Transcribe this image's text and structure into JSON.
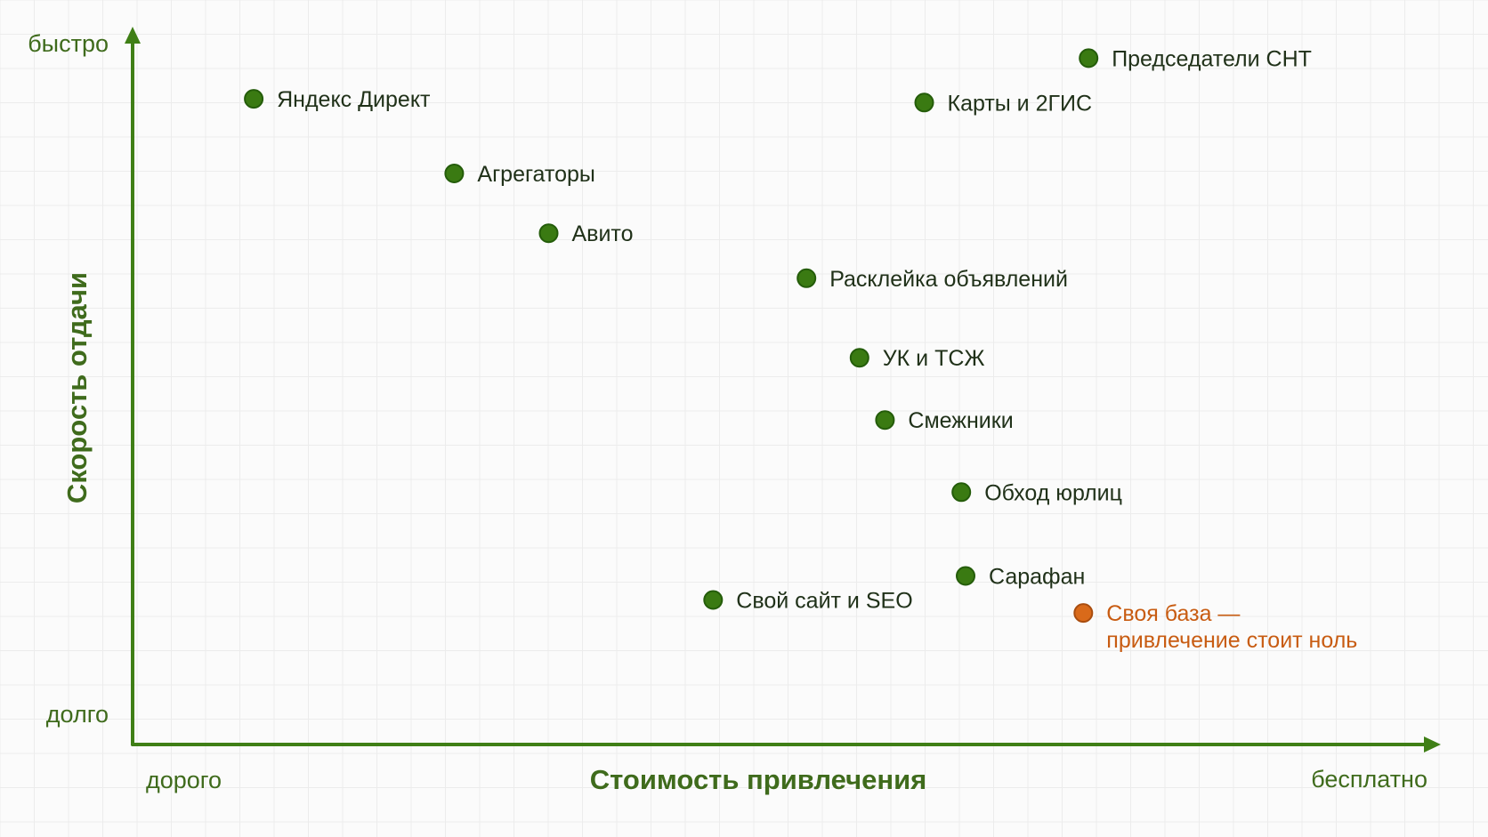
{
  "colors": {
    "background": "#fbfbfb",
    "grid": "#ececec",
    "axis": "#3f7f16",
    "point": "#3a7a12",
    "point_stroke": "#245c0a",
    "highlight": "#d96a1a",
    "highlight_stroke": "#a94d0f",
    "text": "#203119",
    "highlight_text": "#c85c12"
  },
  "chart_data": {
    "type": "scatter",
    "xlabel": "Стоимость привлечения",
    "ylabel": "Скорость отдачи",
    "x_low_label": "дорого",
    "x_high_label": "бесплатно",
    "y_low_label": "долго",
    "y_high_label": "быстро",
    "xlim": [
      0,
      100
    ],
    "ylim": [
      0,
      100
    ],
    "grid": true,
    "points": [
      {
        "label": [
          "Яндекс Директ"
        ],
        "x": 5.8,
        "y": 93.2,
        "highlight": false
      },
      {
        "label": [
          "Агрегаторы"
        ],
        "x": 24.7,
        "y": 81.1,
        "highlight": false
      },
      {
        "label": [
          "Авито"
        ],
        "x": 33.6,
        "y": 71.4,
        "highlight": false
      },
      {
        "label": [
          "Расклейка объявлений"
        ],
        "x": 57.9,
        "y": 64.1,
        "highlight": false
      },
      {
        "label": [
          "УК и ТСЖ"
        ],
        "x": 62.9,
        "y": 51.2,
        "highlight": false
      },
      {
        "label": [
          "Смежники"
        ],
        "x": 65.3,
        "y": 41.1,
        "highlight": false
      },
      {
        "label": [
          "Обход юрлиц"
        ],
        "x": 72.5,
        "y": 29.4,
        "highlight": false
      },
      {
        "label": [
          "Сарафан"
        ],
        "x": 72.9,
        "y": 15.8,
        "highlight": false
      },
      {
        "label": [
          "Свой сайт и SEO"
        ],
        "x": 49.1,
        "y": 11.9,
        "highlight": false
      },
      {
        "label": [
          "Карты и 2ГИС"
        ],
        "x": 69.0,
        "y": 92.6,
        "highlight": false
      },
      {
        "label": [
          "Председатели СНТ"
        ],
        "x": 84.5,
        "y": 99.8,
        "highlight": false
      },
      {
        "label": [
          "Своя база —",
          "привлечение стоит ноль"
        ],
        "x": 84.0,
        "y": 9.8,
        "highlight": true
      }
    ]
  }
}
